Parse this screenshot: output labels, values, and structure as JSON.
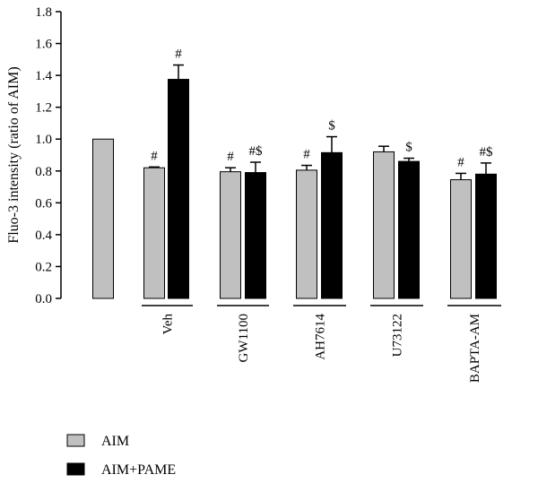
{
  "chart_data": {
    "type": "bar",
    "ylabel": "Fluo-3 intensity (ratio of AIM)",
    "ylim": [
      0,
      1.8
    ],
    "yticks": [
      "0.0",
      "0.2",
      "0.4",
      "0.6",
      "0.8",
      "1.0",
      "1.2",
      "1.4",
      "1.6",
      "1.8"
    ],
    "groups": [
      {
        "label": "",
        "bars": [
          {
            "series": "AIM",
            "value": 1.0,
            "error": 0,
            "annotation": ""
          }
        ]
      },
      {
        "label": "Veh",
        "bars": [
          {
            "series": "AIM",
            "value": 0.82,
            "error": 0.005,
            "annotation": "#"
          },
          {
            "series": "AIM+PAME",
            "value": 1.375,
            "error": 0.09,
            "annotation": "#"
          }
        ]
      },
      {
        "label": "GW1100",
        "bars": [
          {
            "series": "AIM",
            "value": 0.795,
            "error": 0.025,
            "annotation": "#"
          },
          {
            "series": "AIM+PAME",
            "value": 0.79,
            "error": 0.065,
            "annotation": "#$"
          }
        ]
      },
      {
        "label": "AH7614",
        "bars": [
          {
            "series": "AIM",
            "value": 0.805,
            "error": 0.03,
            "annotation": "#"
          },
          {
            "series": "AIM+PAME",
            "value": 0.915,
            "error": 0.1,
            "annotation": "$"
          }
        ]
      },
      {
        "label": "U73122",
        "bars": [
          {
            "series": "AIM",
            "value": 0.92,
            "error": 0.035,
            "annotation": ""
          },
          {
            "series": "AIM+PAME",
            "value": 0.86,
            "error": 0.02,
            "annotation": "$"
          }
        ]
      },
      {
        "label": "BAPTA-AM",
        "bars": [
          {
            "series": "AIM",
            "value": 0.745,
            "error": 0.04,
            "annotation": "#"
          },
          {
            "series": "AIM+PAME",
            "value": 0.78,
            "error": 0.07,
            "annotation": "#$"
          }
        ]
      }
    ],
    "legend": {
      "placement": "bottom-left",
      "entries": [
        {
          "name": "AIM",
          "color": "#c0c0c0"
        },
        {
          "name": "AIM+PAME",
          "color": "#000000"
        }
      ]
    }
  }
}
